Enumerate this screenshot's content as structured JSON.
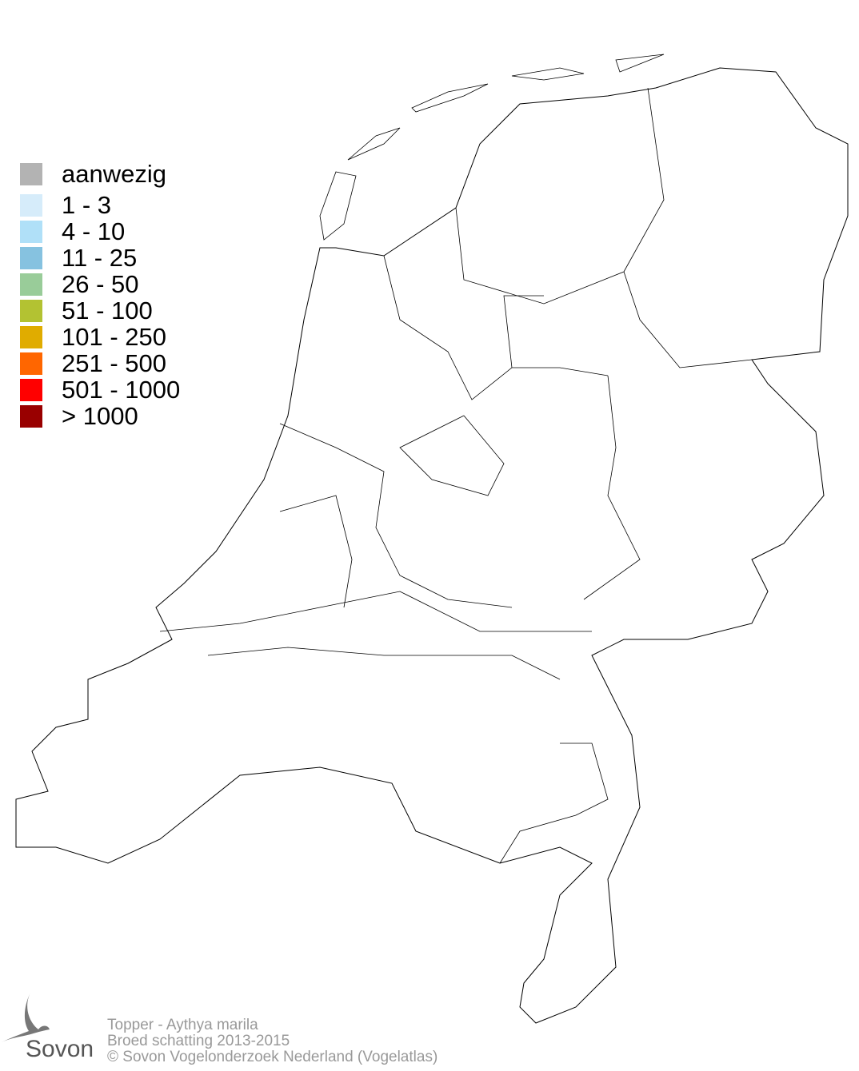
{
  "legend": {
    "items": [
      {
        "label": "aanwezig",
        "color": "#b3b3b3"
      },
      {
        "label": "1 - 3",
        "color": "#d6ecfa"
      },
      {
        "label": "4 - 10",
        "color": "#b0e0f8"
      },
      {
        "label": "11 - 25",
        "color": "#86c2e0"
      },
      {
        "label": "26 - 50",
        "color": "#99cc99"
      },
      {
        "label": "51 - 100",
        "color": "#b3c232"
      },
      {
        "label": "101 - 250",
        "color": "#e0ac00"
      },
      {
        "label": "251 - 500",
        "color": "#ff6600"
      },
      {
        "label": "501 - 1000",
        "color": "#ff0000"
      },
      {
        "label": "> 1000",
        "color": "#990000"
      }
    ]
  },
  "footer": {
    "species": "Topper - Aythya marila",
    "subtitle": "Broed schatting 2013-2015",
    "copyright": "© Sovon Vogelonderzoek Nederland (Vogelatlas)"
  },
  "logo": {
    "text": "Sovon",
    "icon": "swallow-logo-icon"
  }
}
